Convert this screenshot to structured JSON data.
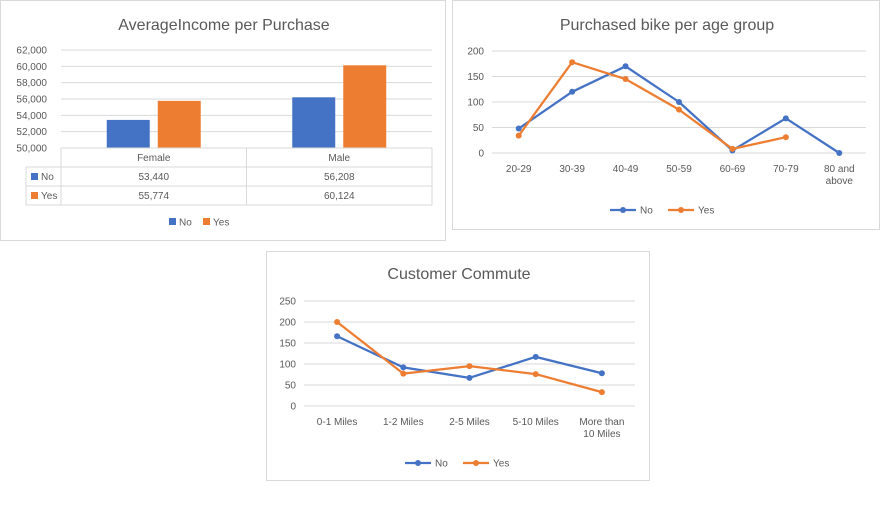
{
  "colors": {
    "No": "#4472c4",
    "Yes": "#ed7d31",
    "grid": "#d9d9d9",
    "text": "#595959"
  },
  "chart_data": [
    {
      "type": "bar",
      "title": "AverageIncome per Purchase",
      "categories": [
        "Female",
        "Male"
      ],
      "series": [
        {
          "name": "No",
          "values": [
            53440,
            56208
          ],
          "labels": [
            "53,440",
            "56,208"
          ]
        },
        {
          "name": "Yes",
          "values": [
            55774,
            60124
          ],
          "labels": [
            "55,774",
            "60,124"
          ]
        }
      ],
      "yticks": [
        "50,000",
        "52,000",
        "54,000",
        "56,000",
        "58,000",
        "60,000",
        "62,000"
      ],
      "ylim": [
        50000,
        62000
      ],
      "data_table": true,
      "legend": "bottom",
      "grid": true
    },
    {
      "type": "line",
      "title": "Purchased bike per age group",
      "categories": [
        "20-29",
        "30-39",
        "40-49",
        "50-59",
        "60-69",
        "70-79",
        "80 and above"
      ],
      "series": [
        {
          "name": "No",
          "values": [
            48,
            120,
            170,
            100,
            5,
            68,
            0
          ]
        },
        {
          "name": "Yes",
          "values": [
            34,
            178,
            145,
            85,
            8,
            31,
            null
          ]
        }
      ],
      "yticks": [
        "0",
        "50",
        "100",
        "150",
        "200"
      ],
      "ylim": [
        0,
        200
      ],
      "legend": "bottom",
      "grid": true
    },
    {
      "type": "line",
      "title": "Customer Commute",
      "categories": [
        "0-1 Miles",
        "1-2 Miles",
        "2-5 Miles",
        "5-10 Miles",
        "More than 10 Miles"
      ],
      "series": [
        {
          "name": "No",
          "values": [
            166,
            92,
            67,
            117,
            78
          ]
        },
        {
          "name": "Yes",
          "values": [
            200,
            77,
            95,
            76,
            33
          ]
        }
      ],
      "yticks": [
        "0",
        "50",
        "100",
        "150",
        "200",
        "250"
      ],
      "ylim": [
        0,
        250
      ],
      "legend": "bottom",
      "grid": true
    }
  ]
}
